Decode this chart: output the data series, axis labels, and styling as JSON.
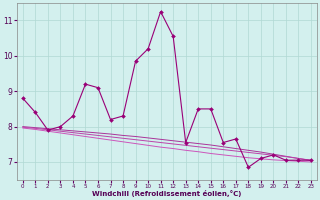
{
  "xlabel": "Windchill (Refroidissement éolien,°C)",
  "background_color": "#d3f0ee",
  "grid_color": "#b0d8d4",
  "line_color": "#990077",
  "x": [
    0,
    1,
    2,
    3,
    4,
    5,
    6,
    7,
    8,
    9,
    10,
    11,
    12,
    13,
    14,
    15,
    16,
    17,
    18,
    19,
    20,
    21,
    22,
    23
  ],
  "y_main": [
    8.8,
    8.4,
    7.9,
    8.0,
    8.3,
    9.2,
    9.1,
    8.2,
    8.3,
    9.85,
    10.2,
    11.25,
    10.55,
    7.55,
    8.5,
    8.5,
    7.55,
    7.65,
    6.85,
    7.1,
    7.2,
    7.05,
    7.05,
    7.05
  ],
  "y_line1": [
    8.0,
    7.97,
    7.94,
    7.91,
    7.88,
    7.85,
    7.82,
    7.79,
    7.75,
    7.72,
    7.68,
    7.64,
    7.6,
    7.56,
    7.52,
    7.48,
    7.43,
    7.38,
    7.33,
    7.28,
    7.22,
    7.16,
    7.1,
    7.04
  ],
  "y_line2": [
    7.98,
    7.95,
    7.91,
    7.87,
    7.83,
    7.79,
    7.75,
    7.71,
    7.67,
    7.63,
    7.59,
    7.55,
    7.51,
    7.47,
    7.43,
    7.39,
    7.35,
    7.31,
    7.27,
    7.23,
    7.19,
    7.15,
    7.1,
    7.05
  ],
  "y_line3": [
    7.96,
    7.92,
    7.87,
    7.82,
    7.77,
    7.72,
    7.67,
    7.62,
    7.57,
    7.52,
    7.47,
    7.42,
    7.38,
    7.33,
    7.29,
    7.24,
    7.2,
    7.16,
    7.12,
    7.09,
    7.06,
    7.04,
    7.02,
    7.0
  ],
  "ylim": [
    6.5,
    11.5
  ],
  "xlim": [
    -0.5,
    23.5
  ],
  "yticks": [
    7,
    8,
    9,
    10,
    11
  ],
  "xticks": [
    0,
    1,
    2,
    3,
    4,
    5,
    6,
    7,
    8,
    9,
    10,
    11,
    12,
    13,
    14,
    15,
    16,
    17,
    18,
    19,
    20,
    21,
    22,
    23
  ]
}
